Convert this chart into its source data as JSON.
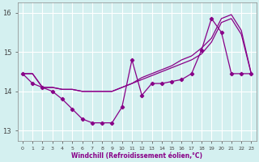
{
  "xlabel": "Windchill (Refroidissement éolien,°C)",
  "background_color": "#d4f0f0",
  "line_color": "#880088",
  "xlim": [
    -0.5,
    23.5
  ],
  "ylim": [
    12.75,
    16.25
  ],
  "yticks": [
    13,
    14,
    15,
    16
  ],
  "xticks": [
    0,
    1,
    2,
    3,
    4,
    5,
    6,
    7,
    8,
    9,
    10,
    11,
    12,
    13,
    14,
    15,
    16,
    17,
    18,
    19,
    20,
    21,
    22,
    23
  ],
  "hours": [
    0,
    1,
    2,
    3,
    4,
    5,
    6,
    7,
    8,
    9,
    10,
    11,
    12,
    13,
    14,
    15,
    16,
    17,
    18,
    19,
    20,
    21,
    22,
    23
  ],
  "windchill": [
    14.45,
    14.2,
    14.1,
    14.0,
    13.8,
    13.55,
    13.3,
    13.2,
    13.2,
    13.2,
    13.6,
    14.8,
    13.9,
    14.2,
    14.2,
    14.25,
    14.3,
    14.45,
    15.05,
    15.85,
    15.5,
    14.45,
    14.45,
    14.45
  ],
  "temp1": [
    14.45,
    14.45,
    14.1,
    14.1,
    14.05,
    14.05,
    14.0,
    14.0,
    14.0,
    14.0,
    14.1,
    14.2,
    14.3,
    14.4,
    14.5,
    14.6,
    14.7,
    14.8,
    14.95,
    15.25,
    15.75,
    15.85,
    15.45,
    14.45
  ],
  "temp2": [
    14.45,
    14.45,
    14.1,
    14.1,
    14.05,
    14.05,
    14.0,
    14.0,
    14.0,
    14.0,
    14.1,
    14.2,
    14.35,
    14.45,
    14.55,
    14.65,
    14.8,
    14.9,
    15.1,
    15.35,
    15.85,
    15.95,
    15.55,
    14.45
  ]
}
